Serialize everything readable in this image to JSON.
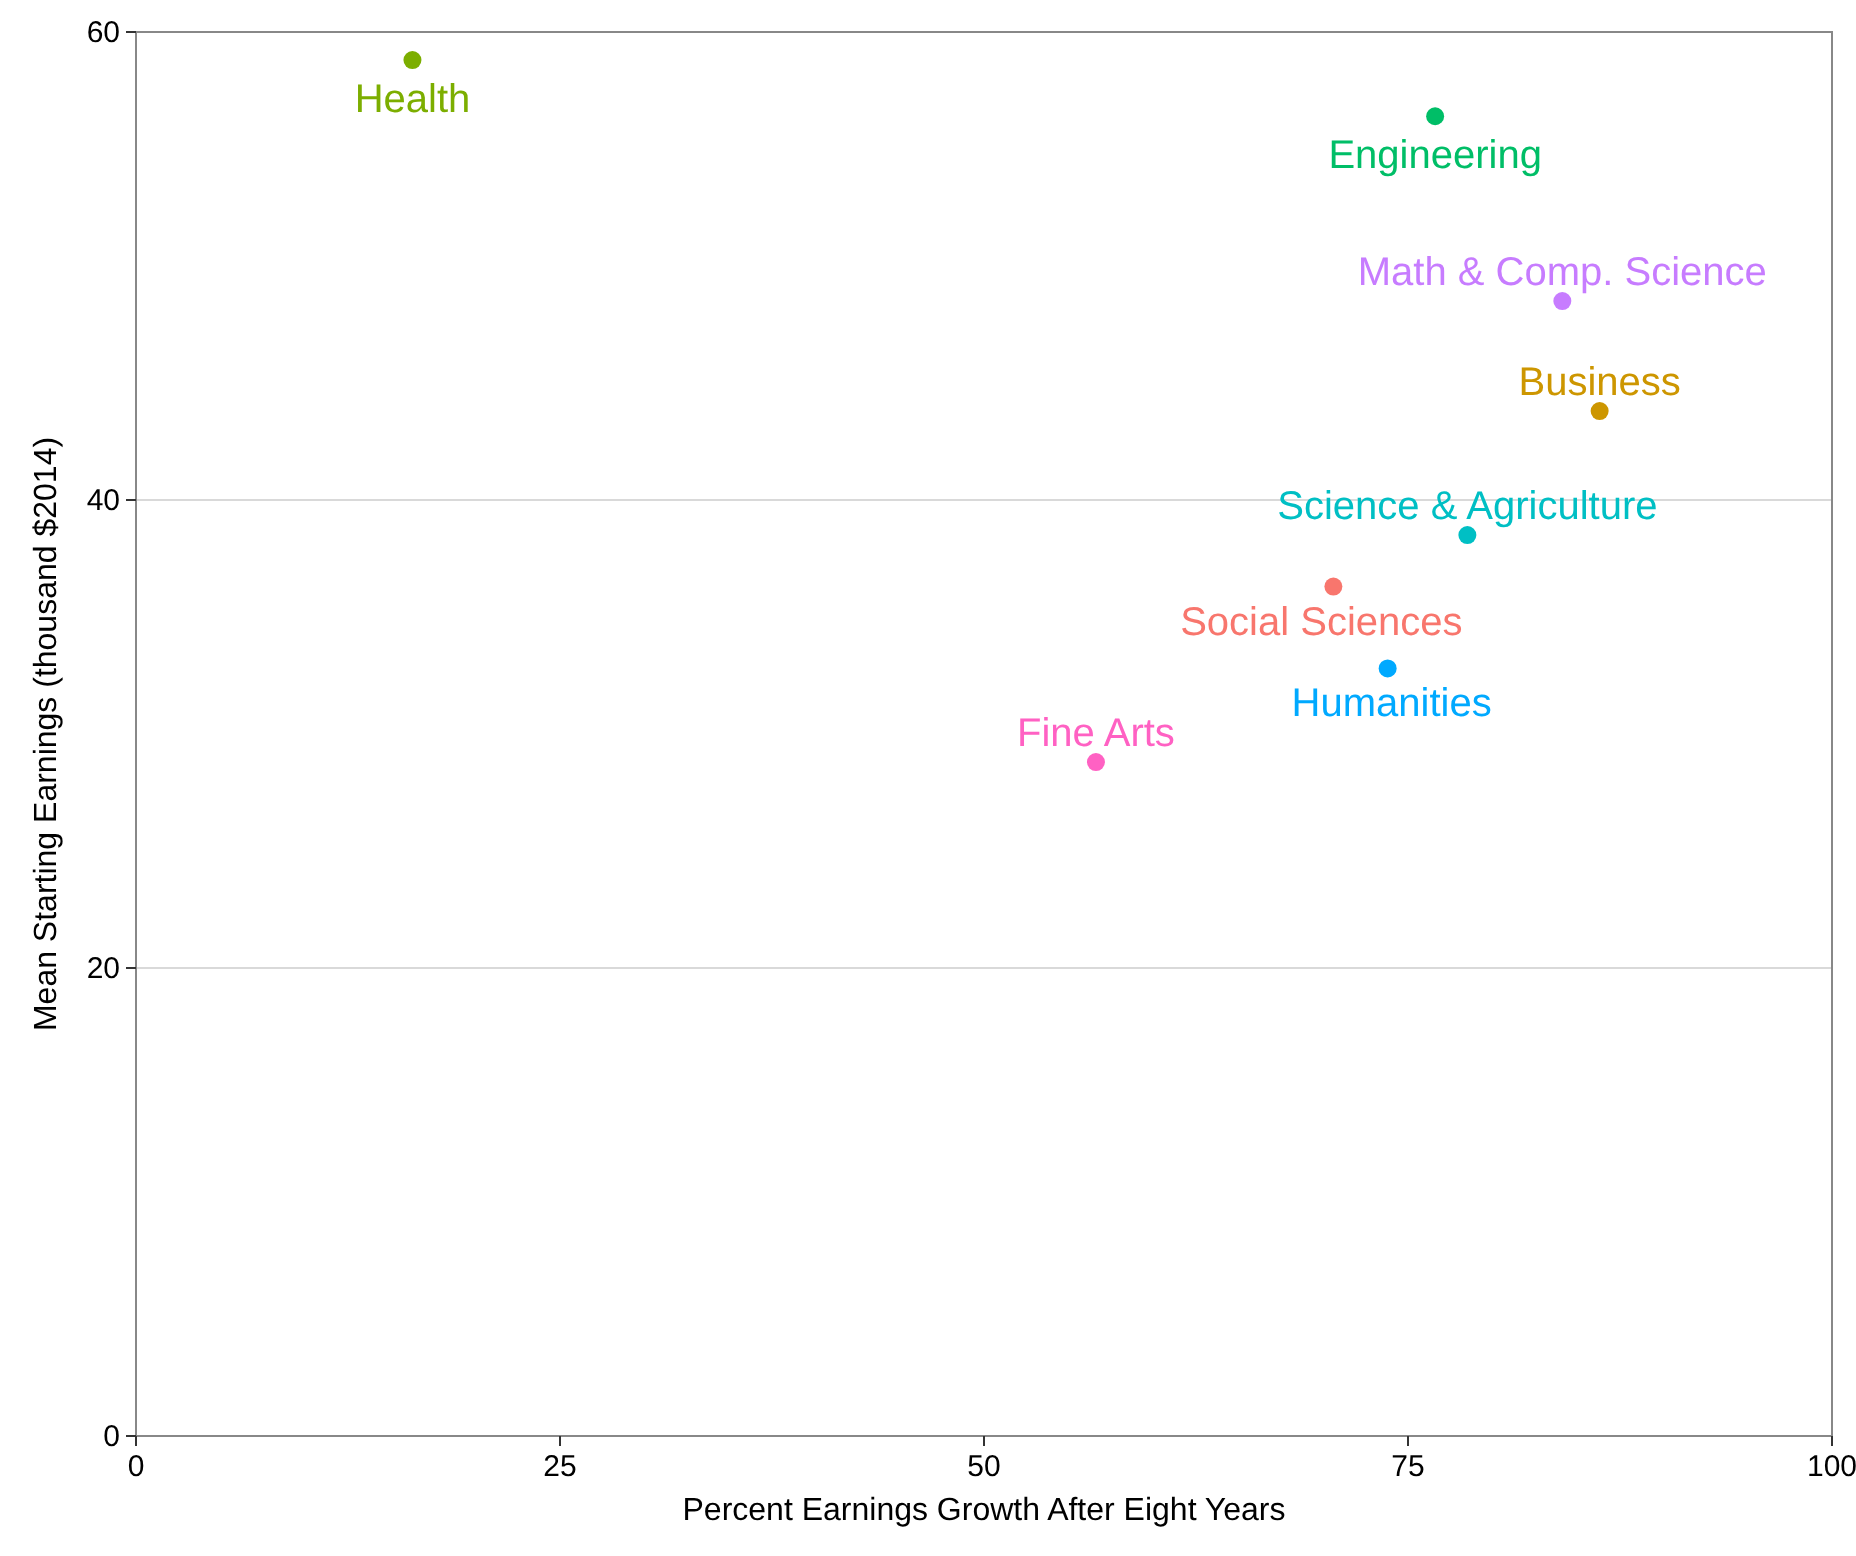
{
  "chart_data": {
    "type": "scatter",
    "xlabel": "Percent Earnings Growth After Eight Years",
    "ylabel": "Mean Starting Earnings (thousand $2014)",
    "xlim": [
      0,
      100
    ],
    "xticks": [
      0,
      25,
      50,
      75,
      100
    ],
    "ylim": [
      0,
      60
    ],
    "yticks": [
      0,
      20,
      40,
      60
    ],
    "grid": "y",
    "marker": "circle",
    "series": [
      {
        "name": "Health",
        "color": "#7cae00",
        "x": [
          16.3
        ],
        "values": [
          58.8
        ]
      },
      {
        "name": "Engineering",
        "color": "#00be67",
        "x": [
          76.6
        ],
        "values": [
          56.4
        ]
      },
      {
        "name": "Math & Comp. Science",
        "color": "#c77cff",
        "x": [
          84.1
        ],
        "values": [
          48.5
        ]
      },
      {
        "name": "Business",
        "color": "#cd9600",
        "x": [
          86.3
        ],
        "values": [
          43.8
        ]
      },
      {
        "name": "Science & Agriculture",
        "color": "#00bfc4",
        "x": [
          78.5
        ],
        "values": [
          38.5
        ]
      },
      {
        "name": "Social Sciences",
        "color": "#f8766d",
        "x": [
          70.6
        ],
        "values": [
          36.3
        ]
      },
      {
        "name": "Humanities",
        "color": "#00a9ff",
        "x": [
          73.8
        ],
        "values": [
          32.8
        ]
      },
      {
        "name": "Fine Arts",
        "color": "#ff61c3",
        "x": [
          56.6
        ],
        "values": [
          28.8
        ]
      }
    ]
  }
}
